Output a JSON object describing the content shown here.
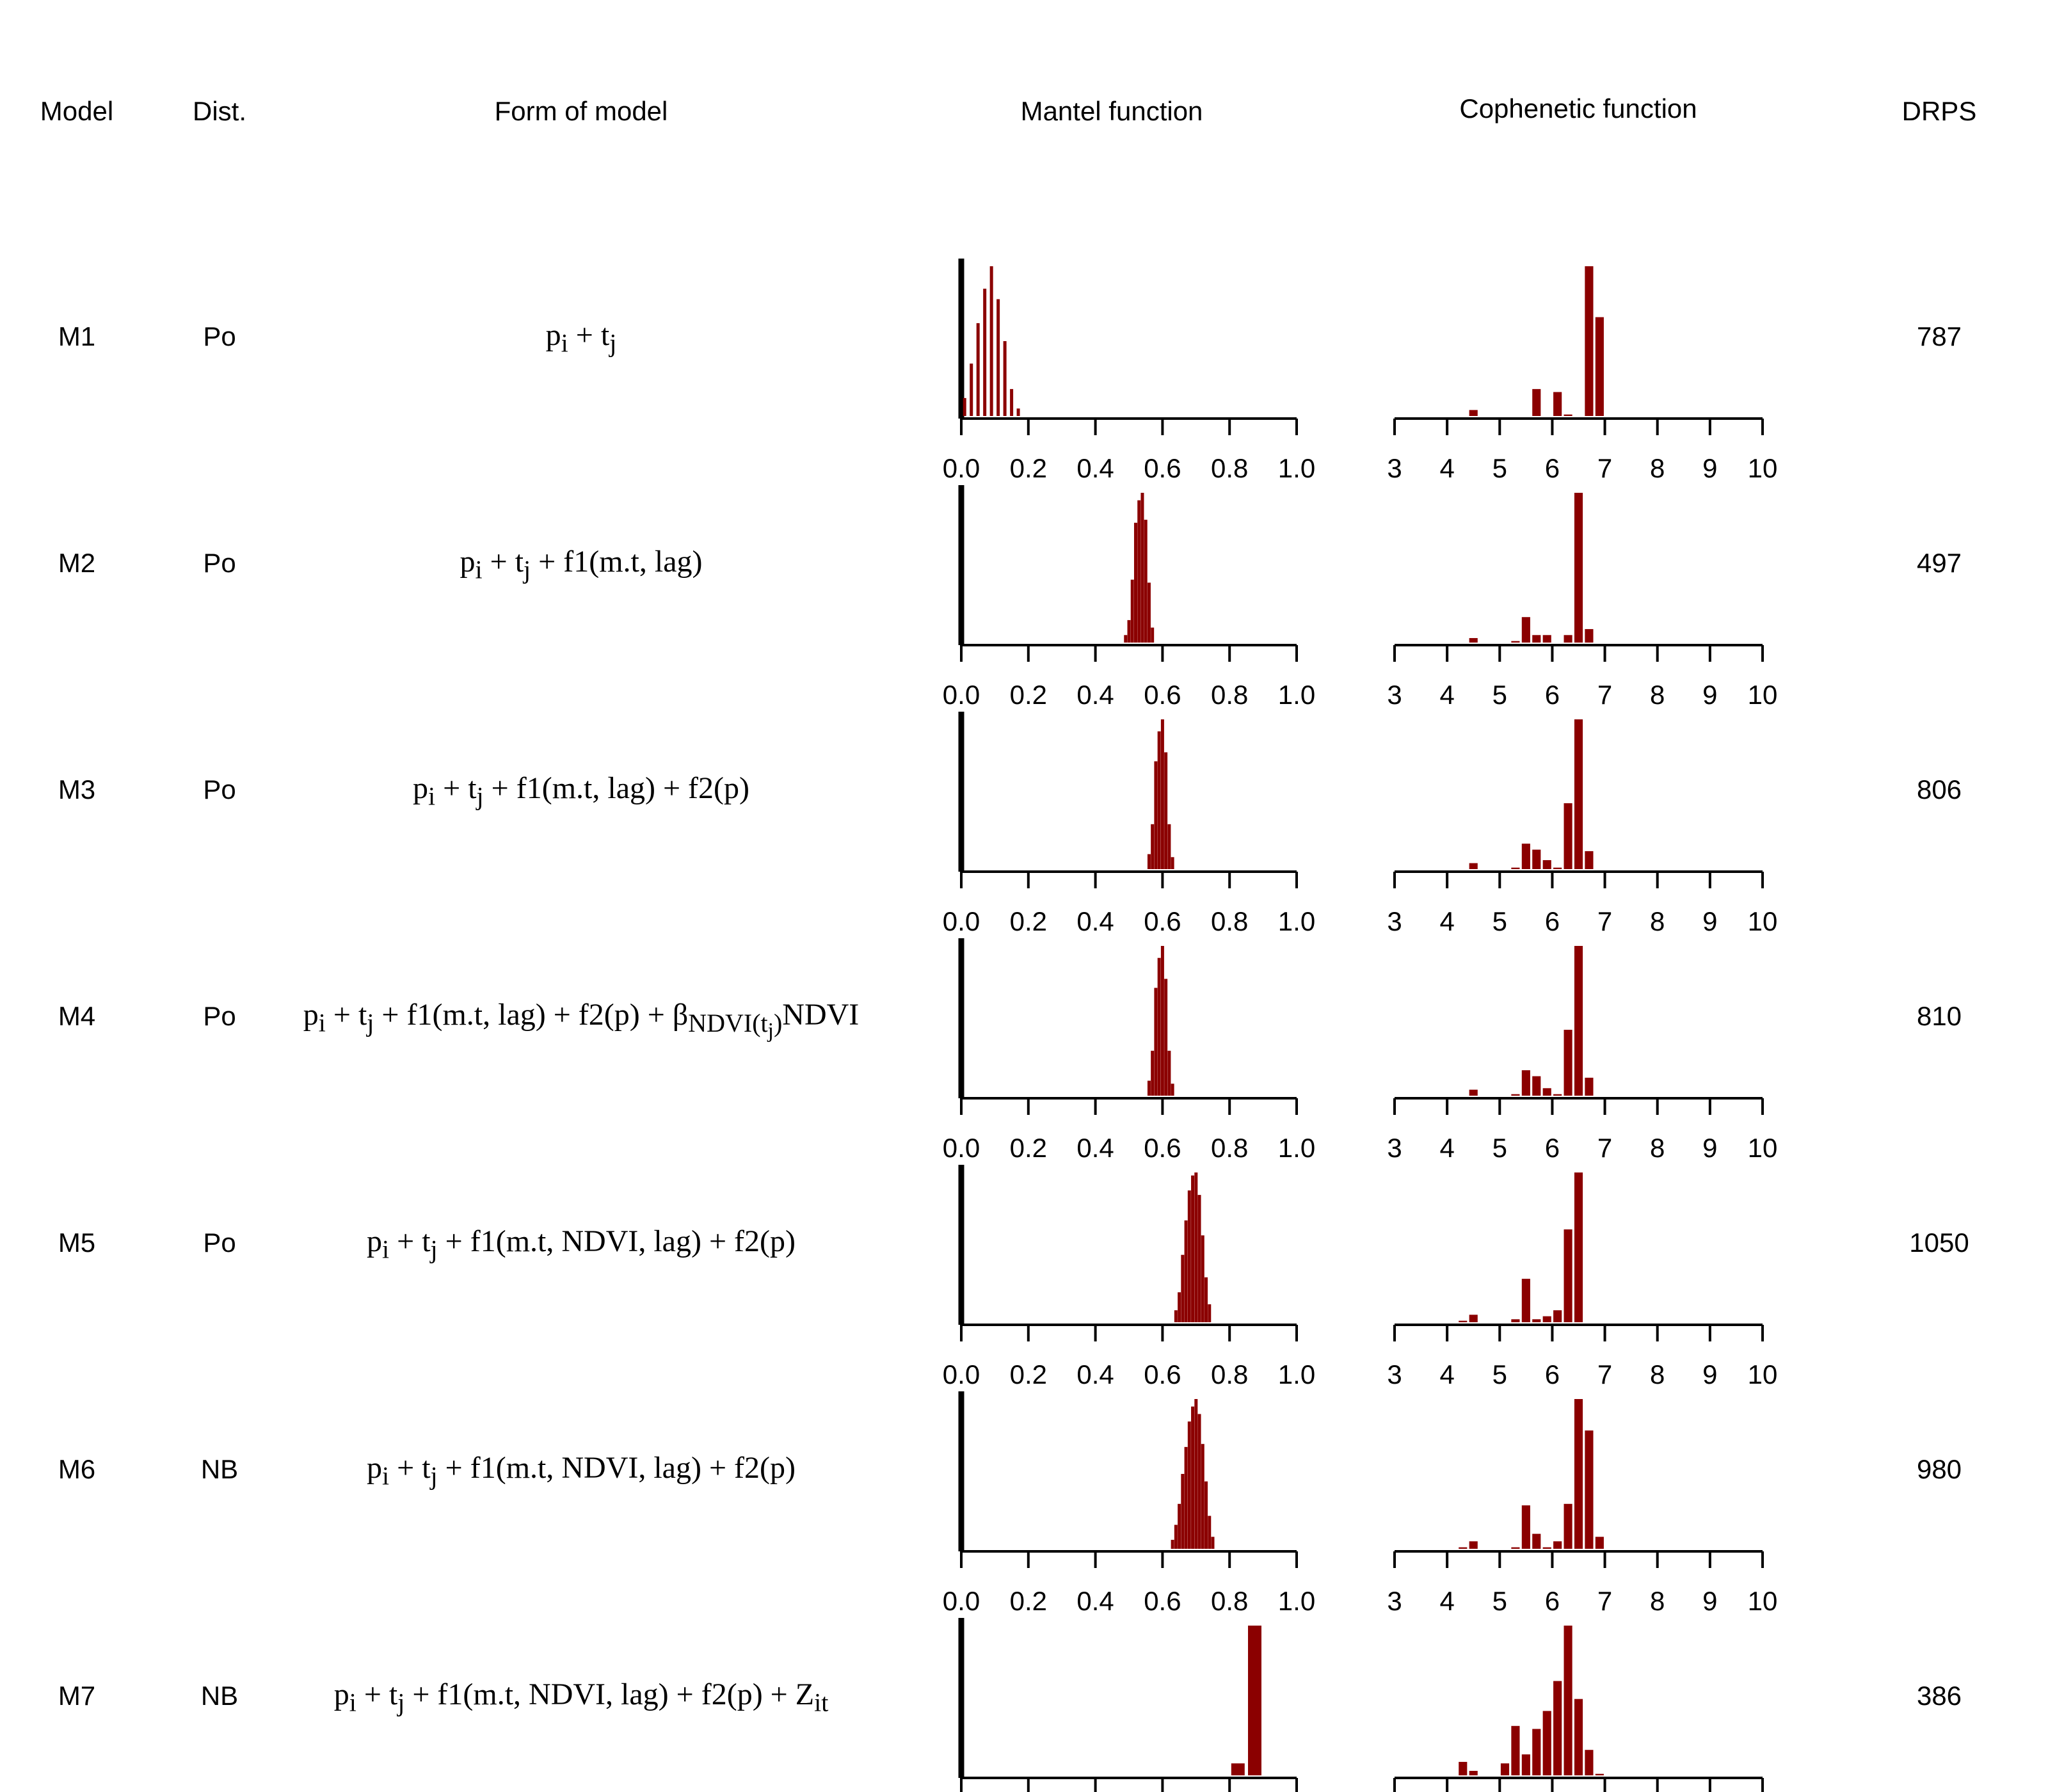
{
  "headers": {
    "model": "Model",
    "dist": "Dist.",
    "form": "Form of model",
    "mantel": "Mantel function",
    "cophenetic": "Cophenetic function",
    "drps": "DRPS"
  },
  "rows": [
    {
      "model": "M1",
      "dist": "Po",
      "formula_html": "p<sub>i</sub> + t<sub>j</sub>",
      "drps": "787"
    },
    {
      "model": "M2",
      "dist": "Po",
      "formula_html": "p<sub>i</sub> + t<sub>j</sub> + f1(m.t, lag)",
      "drps": "497"
    },
    {
      "model": "M3",
      "dist": "Po",
      "formula_html": "p<sub>i</sub> + t<sub>j</sub> + f1(m.t, lag) + f2(p)",
      "drps": "806"
    },
    {
      "model": "M4",
      "dist": "Po",
      "formula_html": "p<sub>i</sub> + t<sub>j</sub> + f1(m.t, lag) + f2(p) + β<sub>NDVI(t<sub>j</sub>)</sub>NDVI",
      "drps": "810"
    },
    {
      "model": "M5",
      "dist": "Po",
      "formula_html": "p<sub>i</sub> + t<sub>j</sub> + f1(m.t, NDVI, lag) + f2(p)",
      "drps": "1050"
    },
    {
      "model": "M6",
      "dist": "NB",
      "formula_html": "p<sub>i</sub> + t<sub>j</sub> + f1(m.t, NDVI, lag) + f2(p)",
      "drps": "980"
    },
    {
      "model": "M7",
      "dist": "NB",
      "formula_html": "p<sub>i</sub> + t<sub>j</sub> + f1(m.t, NDVI, lag) + f2(p) + Z<sub>it</sub>",
      "drps": "386"
    }
  ],
  "chart_data": [
    {
      "type": "bar",
      "title": "Mantel function",
      "xlim": [
        0,
        1
      ],
      "xticks": [
        "0.0",
        "0.2",
        "0.4",
        "0.6",
        "0.8",
        "1.0"
      ],
      "bar_color": "#8B0000",
      "reference_line_at": 0,
      "series": [
        {
          "name": "M1",
          "x": [
            0.01,
            0.03,
            0.05,
            0.07,
            0.09,
            0.11,
            0.13,
            0.15,
            0.17
          ],
          "values": [
            0.12,
            0.35,
            0.62,
            0.85,
            1.0,
            0.78,
            0.5,
            0.18,
            0.05
          ]
        },
        {
          "name": "M2",
          "x": [
            0.49,
            0.5,
            0.51,
            0.52,
            0.53,
            0.54,
            0.55,
            0.56,
            0.57
          ],
          "values": [
            0.05,
            0.15,
            0.42,
            0.8,
            0.95,
            1.0,
            0.82,
            0.4,
            0.1
          ]
        },
        {
          "name": "M3",
          "x": [
            0.56,
            0.57,
            0.58,
            0.59,
            0.6,
            0.61,
            0.62,
            0.63
          ],
          "values": [
            0.1,
            0.3,
            0.72,
            0.92,
            1.0,
            0.78,
            0.3,
            0.08
          ]
        },
        {
          "name": "M4",
          "x": [
            0.56,
            0.57,
            0.58,
            0.59,
            0.6,
            0.61,
            0.62,
            0.63
          ],
          "values": [
            0.1,
            0.3,
            0.72,
            0.92,
            1.0,
            0.78,
            0.3,
            0.08
          ]
        },
        {
          "name": "M5",
          "x": [
            0.64,
            0.65,
            0.66,
            0.67,
            0.68,
            0.69,
            0.7,
            0.71,
            0.72,
            0.73,
            0.74
          ],
          "values": [
            0.08,
            0.2,
            0.45,
            0.68,
            0.88,
            0.98,
            1.0,
            0.85,
            0.58,
            0.3,
            0.12
          ]
        },
        {
          "name": "M6",
          "x": [
            0.63,
            0.64,
            0.65,
            0.66,
            0.67,
            0.68,
            0.69,
            0.7,
            0.71,
            0.72,
            0.73,
            0.74,
            0.75
          ],
          "values": [
            0.06,
            0.16,
            0.3,
            0.5,
            0.68,
            0.85,
            0.95,
            1.0,
            0.9,
            0.7,
            0.45,
            0.22,
            0.08
          ]
        },
        {
          "name": "M7",
          "x": [
            0.825,
            0.875
          ],
          "values": [
            0.08,
            1.0
          ],
          "bar_width": 0.04
        }
      ]
    },
    {
      "type": "bar",
      "title": "Cophenetic function",
      "xlim": [
        3,
        10
      ],
      "xticks": [
        "3",
        "4",
        "5",
        "6",
        "7",
        "8",
        "9",
        "10"
      ],
      "bar_color": "#8B0000",
      "bar_width": 0.16,
      "series": [
        {
          "name": "M1",
          "x": [
            4.5,
            5.7,
            6.1,
            6.3,
            6.7,
            6.9
          ],
          "values": [
            0.04,
            0.18,
            0.16,
            0.01,
            1.0,
            0.66
          ]
        },
        {
          "name": "M2",
          "x": [
            4.5,
            5.3,
            5.5,
            5.7,
            5.9,
            6.3,
            6.5,
            6.7
          ],
          "values": [
            0.03,
            0.01,
            0.17,
            0.05,
            0.05,
            0.05,
            1.0,
            0.09
          ]
        },
        {
          "name": "M3",
          "x": [
            4.5,
            5.3,
            5.5,
            5.7,
            5.9,
            6.1,
            6.3,
            6.5,
            6.7
          ],
          "values": [
            0.04,
            0.01,
            0.17,
            0.13,
            0.06,
            0.01,
            0.44,
            1.0,
            0.12
          ]
        },
        {
          "name": "M4",
          "x": [
            4.5,
            5.3,
            5.5,
            5.7,
            5.9,
            6.1,
            6.3,
            6.5,
            6.7
          ],
          "values": [
            0.04,
            0.01,
            0.17,
            0.13,
            0.05,
            0.01,
            0.44,
            1.0,
            0.12
          ]
        },
        {
          "name": "M5",
          "x": [
            4.3,
            4.5,
            5.3,
            5.5,
            5.7,
            5.9,
            6.1,
            6.3,
            6.5
          ],
          "values": [
            0.01,
            0.05,
            0.02,
            0.29,
            0.02,
            0.04,
            0.08,
            0.62,
            1.0
          ]
        },
        {
          "name": "M6",
          "x": [
            4.3,
            4.5,
            5.3,
            5.5,
            5.7,
            5.9,
            6.1,
            6.3,
            6.5,
            6.7,
            6.9
          ],
          "values": [
            0.01,
            0.05,
            0.01,
            0.29,
            0.1,
            0.01,
            0.05,
            0.3,
            1.0,
            0.79,
            0.08
          ]
        },
        {
          "name": "M7",
          "x": [
            4.3,
            4.5,
            5.1,
            5.3,
            5.5,
            5.7,
            5.9,
            6.1,
            6.3,
            6.5,
            6.7,
            6.9
          ],
          "values": [
            0.09,
            0.03,
            0.08,
            0.33,
            0.14,
            0.31,
            0.43,
            0.63,
            1.0,
            0.51,
            0.17,
            0.01
          ]
        }
      ]
    }
  ]
}
